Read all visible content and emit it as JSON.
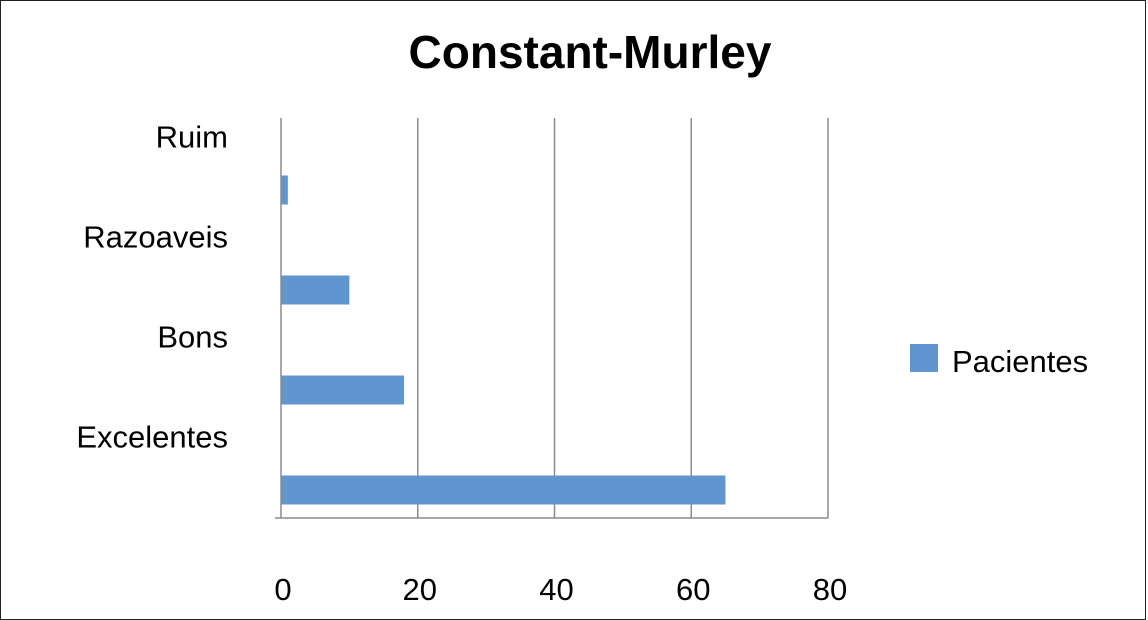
{
  "chart_data": {
    "type": "bar",
    "orientation": "horizontal",
    "title": "Constant-Murley",
    "categories": [
      "Ruim",
      "Razoaveis",
      "Bons",
      "Excelentes"
    ],
    "series": [
      {
        "name": "Pacientes",
        "values": [
          1,
          10,
          18,
          65
        ],
        "color": "#6096cf"
      }
    ],
    "xlim": [
      0,
      80
    ],
    "x_ticks": [
      "0",
      "20",
      "40",
      "60",
      "80"
    ],
    "grid": "vertical",
    "legend_position": "right"
  }
}
